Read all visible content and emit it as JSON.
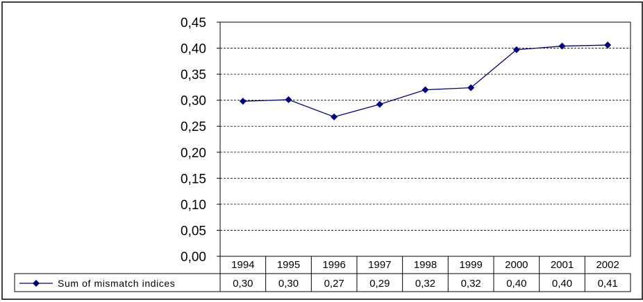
{
  "chart_data": {
    "type": "line",
    "categories": [
      "1994",
      "1995",
      "1996",
      "1997",
      "1998",
      "1999",
      "2000",
      "2001",
      "2002"
    ],
    "series": [
      {
        "name": "Sum of mismatch indices",
        "values": [
          0.298,
          0.301,
          0.268,
          0.292,
          0.32,
          0.324,
          0.397,
          0.404,
          0.406
        ],
        "table_labels": [
          "0,30",
          "0,30",
          "0,27",
          "0,29",
          "0,32",
          "0,32",
          "0,40",
          "0,40",
          "0,41"
        ],
        "color": "#000080"
      }
    ],
    "ylim": [
      0,
      0.45
    ],
    "yticks": [
      "0,00",
      "0,05",
      "0,10",
      "0,15",
      "0,20",
      "0,25",
      "0,30",
      "0,35",
      "0,40",
      "0,45"
    ],
    "grid": true,
    "legend": "data-table-left"
  }
}
